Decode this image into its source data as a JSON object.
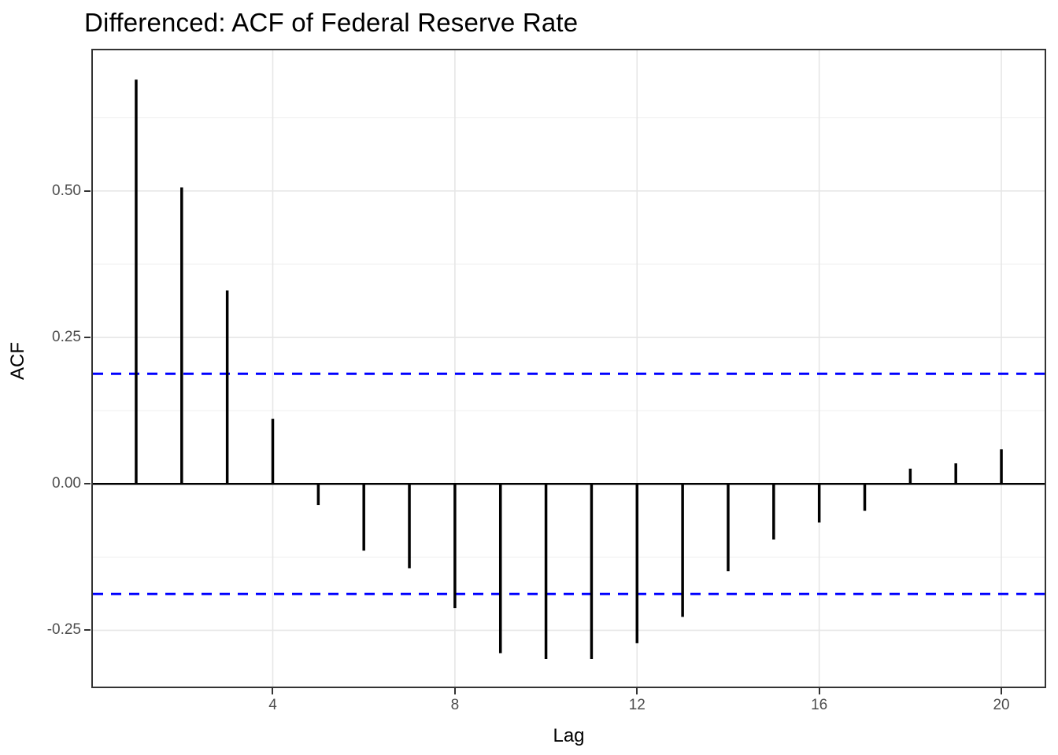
{
  "chart_data": {
    "type": "bar",
    "subtype": "acf-lollipop",
    "title": "Differenced: ACF of Federal Reserve Rate",
    "xlabel": "Lag",
    "ylabel": "ACF",
    "series": [
      {
        "name": "ACF",
        "x": [
          1,
          2,
          3,
          4,
          5,
          6,
          7,
          8,
          9,
          10,
          11,
          12,
          13,
          14,
          15,
          16,
          17,
          18,
          19,
          20
        ],
        "values": [
          0.69,
          0.506,
          0.33,
          0.111,
          -0.036,
          -0.114,
          -0.144,
          -0.212,
          -0.289,
          -0.299,
          -0.299,
          -0.272,
          -0.227,
          -0.149,
          -0.095,
          -0.066,
          -0.046,
          0.026,
          0.035,
          0.059
        ]
      }
    ],
    "confidence_bounds": {
      "upper": 0.188,
      "lower": -0.188,
      "line_style": "dashed"
    },
    "zero_line": 0,
    "xlim": [
      0.05,
      20.95
    ],
    "ylim": [
      -0.346,
      0.74
    ],
    "x_ticks": [
      {
        "value": 4,
        "label": "4"
      },
      {
        "value": 8,
        "label": "8"
      },
      {
        "value": 12,
        "label": "12"
      },
      {
        "value": 16,
        "label": "16"
      },
      {
        "value": 20,
        "label": "20"
      }
    ],
    "y_ticks": [
      {
        "value": 0.5,
        "label": "0.50"
      },
      {
        "value": 0.25,
        "label": "0.25"
      },
      {
        "value": 0.0,
        "label": "0.00"
      },
      {
        "value": -0.25,
        "label": "-0.25"
      }
    ],
    "y_minor_gridlines": [
      0.625,
      0.375,
      0.125,
      -0.125
    ],
    "grid": "major-and-minor-horizontal, major-vertical",
    "legend": "none",
    "colors": {
      "bar": "#000000",
      "zero_line": "#000000",
      "confidence_line": "#0000FF",
      "grid_major": "#E6E6E6",
      "grid_minor": "#F2F2F2",
      "panel_border": "#333333",
      "tick_label": "#4D4D4D",
      "axis_title": "#000000",
      "title": "#000000",
      "panel_background": "#FFFFFF"
    }
  }
}
